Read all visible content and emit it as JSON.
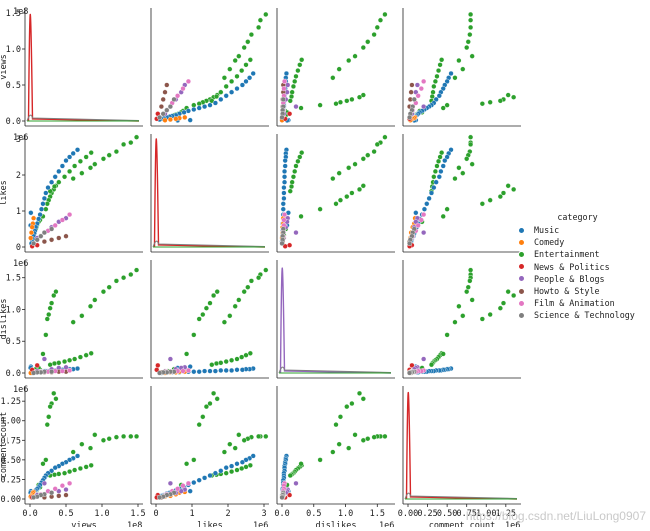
{
  "chart_data": {
    "type": "pairplot",
    "variables": [
      "views",
      "likes",
      "dislikes",
      "comment_count"
    ],
    "axis_labels": [
      "views",
      "likes",
      "dislikes",
      "comment_count"
    ],
    "scale_labels": [
      "1e8",
      "1e6",
      "1e6",
      "1e6"
    ],
    "ranges": [
      [
        0,
        1.5
      ],
      [
        0,
        3.0
      ],
      [
        0,
        1.7
      ],
      [
        0,
        1.38
      ]
    ],
    "ticks": [
      [
        "0.0",
        "0.5",
        "1.0",
        "1.5"
      ],
      [
        "0",
        "1",
        "2",
        "3"
      ],
      [
        "0.0",
        "0.5",
        "1.0",
        "1.5"
      ],
      [
        "0.00",
        "0.25",
        "0.50",
        "0.75",
        "1.00",
        "1.25"
      ]
    ],
    "hue": "category",
    "legend_title": "category",
    "categories": [
      {
        "name": "Music",
        "color": "#1f77b4"
      },
      {
        "name": "Comedy",
        "color": "#ff7f0e"
      },
      {
        "name": "Entertainment",
        "color": "#2ca02c"
      },
      {
        "name": "News & Politics",
        "color": "#d62728"
      },
      {
        "name": "People & Blogs",
        "color": "#9467bd"
      },
      {
        "name": "Howto & Style",
        "color": "#8c564b"
      },
      {
        "name": "Film & Animation",
        "color": "#e377c2"
      },
      {
        "name": "Science & Technology",
        "color": "#7f7f7f"
      }
    ],
    "points": [
      {
        "c": 2,
        "v": 1.48,
        "l": 3.05,
        "d": 1.62,
        "cc": 0.8
      },
      {
        "c": 2,
        "v": 1.4,
        "l": 2.9,
        "d": 1.55,
        "cc": 0.8
      },
      {
        "c": 2,
        "v": 1.3,
        "l": 2.85,
        "d": 1.5,
        "cc": 0.8
      },
      {
        "c": 2,
        "v": 1.2,
        "l": 2.65,
        "d": 1.45,
        "cc": 0.79
      },
      {
        "c": 2,
        "v": 1.1,
        "l": 2.55,
        "d": 1.35,
        "cc": 0.77
      },
      {
        "c": 2,
        "v": 1.02,
        "l": 2.45,
        "d": 1.28,
        "cc": 0.75
      },
      {
        "c": 2,
        "v": 0.9,
        "l": 2.3,
        "d": 1.15,
        "cc": 0.82
      },
      {
        "c": 2,
        "v": 0.84,
        "l": 2.2,
        "d": 1.05,
        "cc": 0.65
      },
      {
        "c": 2,
        "v": 0.72,
        "l": 2.05,
        "d": 0.9,
        "cc": 0.7
      },
      {
        "c": 2,
        "v": 0.6,
        "l": 1.9,
        "d": 0.8,
        "cc": 0.6
      },
      {
        "c": 2,
        "v": 0.36,
        "l": 1.7,
        "d": 1.28,
        "cc": 1.28
      },
      {
        "c": 2,
        "v": 0.33,
        "l": 1.6,
        "d": 1.22,
        "cc": 1.35
      },
      {
        "c": 2,
        "v": 0.3,
        "l": 1.5,
        "d": 1.1,
        "cc": 1.22
      },
      {
        "c": 2,
        "v": 0.28,
        "l": 1.4,
        "d": 1.02,
        "cc": 1.18
      },
      {
        "c": 2,
        "v": 0.26,
        "l": 1.3,
        "d": 0.92,
        "cc": 1.05
      },
      {
        "c": 2,
        "v": 0.24,
        "l": 1.2,
        "d": 0.85,
        "cc": 0.95
      },
      {
        "c": 2,
        "v": 0.85,
        "l": 2.62,
        "d": 0.31,
        "cc": 0.43
      },
      {
        "c": 2,
        "v": 0.78,
        "l": 2.5,
        "d": 0.28,
        "cc": 0.41
      },
      {
        "c": 2,
        "v": 0.7,
        "l": 2.38,
        "d": 0.25,
        "cc": 0.39
      },
      {
        "c": 2,
        "v": 0.62,
        "l": 2.25,
        "d": 0.22,
        "cc": 0.37
      },
      {
        "c": 2,
        "v": 0.55,
        "l": 2.1,
        "d": 0.2,
        "cc": 0.35
      },
      {
        "c": 2,
        "v": 0.48,
        "l": 1.95,
        "d": 0.18,
        "cc": 0.33
      },
      {
        "c": 2,
        "v": 0.4,
        "l": 1.8,
        "d": 0.16,
        "cc": 0.32
      },
      {
        "c": 2,
        "v": 0.34,
        "l": 1.68,
        "d": 0.15,
        "cc": 0.31
      },
      {
        "c": 2,
        "v": 0.28,
        "l": 1.55,
        "d": 0.13,
        "cc": 0.3
      },
      {
        "c": 2,
        "v": 0.22,
        "l": 1.05,
        "d": 0.6,
        "cc": 0.5
      },
      {
        "c": 2,
        "v": 0.18,
        "l": 0.85,
        "d": 0.3,
        "cc": 0.45
      },
      {
        "c": 2,
        "v": 0.14,
        "l": 0.75,
        "d": 0.05,
        "cc": 0.15
      },
      {
        "c": 2,
        "v": 0.12,
        "l": 0.7,
        "d": 0.08,
        "cc": 0.18
      },
      {
        "c": 2,
        "v": 0.1,
        "l": 0.62,
        "d": 0.03,
        "cc": 0.12
      },
      {
        "c": 2,
        "v": 0.09,
        "l": 0.55,
        "d": 0.04,
        "cc": 0.1
      },
      {
        "c": 2,
        "v": 0.08,
        "l": 0.5,
        "d": 0.06,
        "cc": 0.09
      },
      {
        "c": 2,
        "v": 0.06,
        "l": 0.4,
        "d": 0.02,
        "cc": 0.07
      },
      {
        "c": 2,
        "v": 0.05,
        "l": 0.33,
        "d": 0.03,
        "cc": 0.06
      },
      {
        "c": 2,
        "v": 0.04,
        "l": 0.26,
        "d": 0.02,
        "cc": 0.05
      },
      {
        "c": 2,
        "v": 0.03,
        "l": 0.18,
        "d": 0.01,
        "cc": 0.04
      },
      {
        "c": 2,
        "v": 0.02,
        "l": 0.1,
        "d": 0.01,
        "cc": 0.02
      },
      {
        "c": 0,
        "v": 0.66,
        "l": 2.7,
        "d": 0.07,
        "cc": 0.55
      },
      {
        "c": 0,
        "v": 0.6,
        "l": 2.6,
        "d": 0.06,
        "cc": 0.52
      },
      {
        "c": 0,
        "v": 0.55,
        "l": 2.5,
        "d": 0.06,
        "cc": 0.5
      },
      {
        "c": 0,
        "v": 0.5,
        "l": 2.4,
        "d": 0.05,
        "cc": 0.47
      },
      {
        "c": 0,
        "v": 0.45,
        "l": 2.25,
        "d": 0.05,
        "cc": 0.45
      },
      {
        "c": 0,
        "v": 0.4,
        "l": 2.1,
        "d": 0.04,
        "cc": 0.42
      },
      {
        "c": 0,
        "v": 0.35,
        "l": 1.95,
        "d": 0.04,
        "cc": 0.4
      },
      {
        "c": 0,
        "v": 0.3,
        "l": 1.8,
        "d": 0.04,
        "cc": 0.36
      },
      {
        "c": 0,
        "v": 0.25,
        "l": 1.65,
        "d": 0.03,
        "cc": 0.33
      },
      {
        "c": 0,
        "v": 0.22,
        "l": 1.5,
        "d": 0.03,
        "cc": 0.3
      },
      {
        "c": 0,
        "v": 0.2,
        "l": 1.35,
        "d": 0.03,
        "cc": 0.27
      },
      {
        "c": 0,
        "v": 0.18,
        "l": 1.2,
        "d": 0.02,
        "cc": 0.24
      },
      {
        "c": 0,
        "v": 0.16,
        "l": 1.05,
        "d": 0.02,
        "cc": 0.21
      },
      {
        "c": 0,
        "v": 0.14,
        "l": 0.9,
        "d": 0.02,
        "cc": 0.18
      },
      {
        "c": 0,
        "v": 0.12,
        "l": 0.78,
        "d": 0.02,
        "cc": 0.15
      },
      {
        "c": 0,
        "v": 0.1,
        "l": 0.65,
        "d": 0.01,
        "cc": 0.13
      },
      {
        "c": 0,
        "v": 0.08,
        "l": 0.55,
        "d": 0.01,
        "cc": 0.11
      },
      {
        "c": 0,
        "v": 0.07,
        "l": 0.45,
        "d": 0.01,
        "cc": 0.09
      },
      {
        "c": 0,
        "v": 0.06,
        "l": 0.38,
        "d": 0.01,
        "cc": 0.08
      },
      {
        "c": 0,
        "v": 0.05,
        "l": 0.3,
        "d": 0.01,
        "cc": 0.07
      },
      {
        "c": 0,
        "v": 0.04,
        "l": 0.22,
        "d": 0.01,
        "cc": 0.05
      },
      {
        "c": 0,
        "v": 0.03,
        "l": 0.15,
        "d": 0.0,
        "cc": 0.04
      },
      {
        "c": 0,
        "v": 0.02,
        "l": 0.1,
        "d": 0.0,
        "cc": 0.03
      },
      {
        "c": 0,
        "v": 0.012,
        "l": 0.95,
        "d": 0.1,
        "cc": 0.1
      },
      {
        "c": 0,
        "v": 0.008,
        "l": 0.6,
        "d": 0.08,
        "cc": 0.08
      },
      {
        "c": 1,
        "v": 0.05,
        "l": 0.8,
        "d": 0.02,
        "cc": 0.09
      },
      {
        "c": 1,
        "v": 0.04,
        "l": 0.65,
        "d": 0.02,
        "cc": 0.08
      },
      {
        "c": 1,
        "v": 0.03,
        "l": 0.55,
        "d": 0.01,
        "cc": 0.06
      },
      {
        "c": 1,
        "v": 0.02,
        "l": 0.4,
        "d": 0.01,
        "cc": 0.04
      },
      {
        "c": 1,
        "v": 0.01,
        "l": 0.25,
        "d": 0.0,
        "cc": 0.03
      },
      {
        "c": 3,
        "v": 0.1,
        "l": 0.05,
        "d": 0.12,
        "cc": 0.05
      },
      {
        "c": 3,
        "v": 0.03,
        "l": 0.02,
        "d": 0.05,
        "cc": 0.02
      },
      {
        "c": 4,
        "v": 0.5,
        "l": 0.8,
        "d": 0.09,
        "cc": 0.12
      },
      {
        "c": 4,
        "v": 0.4,
        "l": 0.7,
        "d": 0.08,
        "cc": 0.1
      },
      {
        "c": 4,
        "v": 0.3,
        "l": 0.55,
        "d": 0.06,
        "cc": 0.08
      },
      {
        "c": 4,
        "v": 0.2,
        "l": 0.4,
        "d": 0.22,
        "cc": 0.2
      },
      {
        "c": 4,
        "v": 0.1,
        "l": 0.25,
        "d": 0.03,
        "cc": 0.05
      },
      {
        "c": 5,
        "v": 0.5,
        "l": 0.3,
        "d": 0.02,
        "cc": 0.05
      },
      {
        "c": 5,
        "v": 0.4,
        "l": 0.25,
        "d": 0.02,
        "cc": 0.04
      },
      {
        "c": 5,
        "v": 0.3,
        "l": 0.2,
        "d": 0.01,
        "cc": 0.03
      },
      {
        "c": 5,
        "v": 0.2,
        "l": 0.15,
        "d": 0.01,
        "cc": 0.02
      },
      {
        "c": 6,
        "v": 0.55,
        "l": 0.9,
        "d": 0.04,
        "cc": 0.2
      },
      {
        "c": 6,
        "v": 0.45,
        "l": 0.75,
        "d": 0.03,
        "cc": 0.17
      },
      {
        "c": 6,
        "v": 0.35,
        "l": 0.6,
        "d": 0.03,
        "cc": 0.13
      },
      {
        "c": 6,
        "v": 0.25,
        "l": 0.45,
        "d": 0.02,
        "cc": 0.1
      },
      {
        "c": 6,
        "v": 0.15,
        "l": 0.3,
        "d": 0.02,
        "cc": 0.06
      },
      {
        "c": 7,
        "v": 0.3,
        "l": 0.5,
        "d": 0.02,
        "cc": 0.08
      },
      {
        "c": 7,
        "v": 0.2,
        "l": 0.4,
        "d": 0.02,
        "cc": 0.06
      },
      {
        "c": 7,
        "v": 0.15,
        "l": 0.3,
        "d": 0.01,
        "cc": 0.05
      },
      {
        "c": 7,
        "v": 0.1,
        "l": 0.2,
        "d": 0.01,
        "cc": 0.03
      },
      {
        "c": 7,
        "v": 0.05,
        "l": 0.1,
        "d": 0.0,
        "cc": 0.02
      }
    ],
    "diagonal_kde_peaks": {
      "views": {
        "category": "News & Politics",
        "peak_value": 1.48
      },
      "likes": {
        "category": "News & Politics",
        "peak_value": 3.05
      },
      "dislikes": {
        "category": "People & Blogs",
        "peak_value": 1.65
      },
      "comment_count": {
        "category": "News & Politics",
        "peak_value": 1.36
      }
    }
  },
  "watermark": "https://blog.csdn.net/LiuLong0907"
}
